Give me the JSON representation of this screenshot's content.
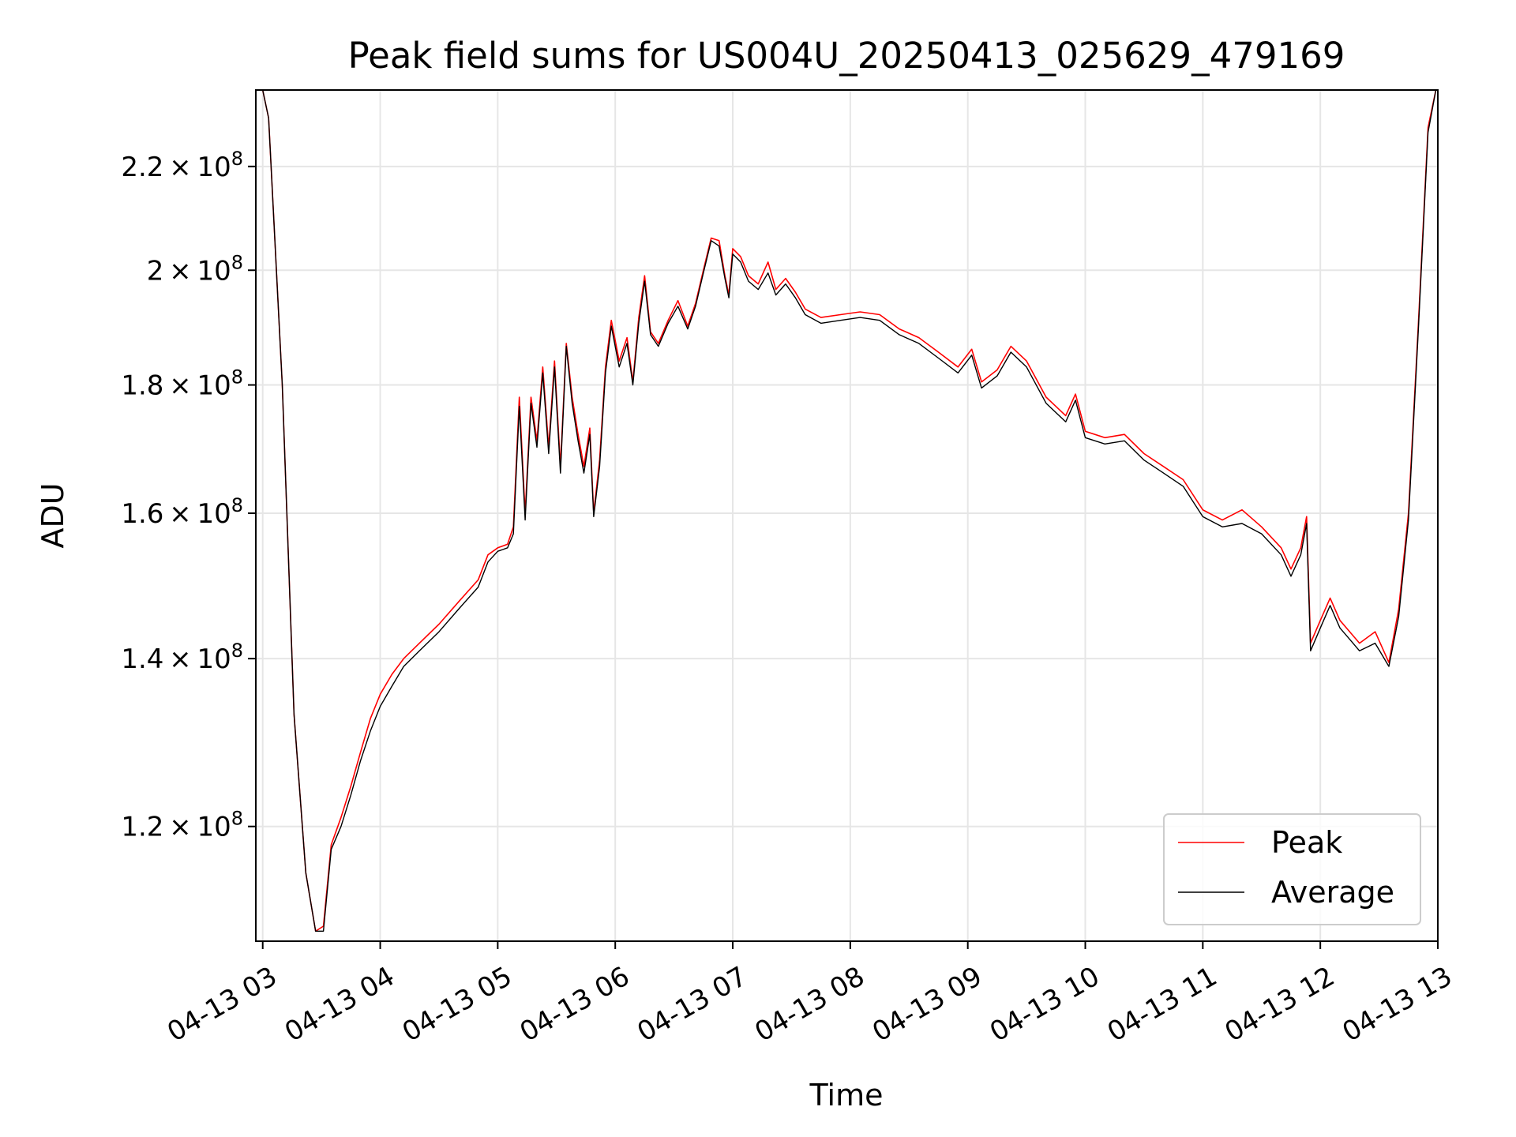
{
  "chart_data": {
    "type": "line",
    "title": "Peak field sums for US004U_20250413_025629_479169",
    "xlabel": "Time",
    "ylabel": "ADU",
    "yscale": "log",
    "grid": true,
    "legend_position": "bottom-right",
    "xlim": [
      "2025-04-13T02:56:29",
      "2025-04-13T13:00:00"
    ],
    "ylim": [
      108000000,
      236000000
    ],
    "x_ticks": [
      {
        "value": "2025-04-13T03:00",
        "label": "04-13 03"
      },
      {
        "value": "2025-04-13T04:00",
        "label": "04-13 04"
      },
      {
        "value": "2025-04-13T05:00",
        "label": "04-13 05"
      },
      {
        "value": "2025-04-13T06:00",
        "label": "04-13 06"
      },
      {
        "value": "2025-04-13T07:00",
        "label": "04-13 07"
      },
      {
        "value": "2025-04-13T08:00",
        "label": "04-13 08"
      },
      {
        "value": "2025-04-13T09:00",
        "label": "04-13 09"
      },
      {
        "value": "2025-04-13T10:00",
        "label": "04-13 10"
      },
      {
        "value": "2025-04-13T11:00",
        "label": "04-13 11"
      },
      {
        "value": "2025-04-13T12:00",
        "label": "04-13 12"
      },
      {
        "value": "2025-04-13T13:00",
        "label": "04-13 13"
      }
    ],
    "y_ticks": [
      {
        "value": 120000000,
        "mantissa": "1.2",
        "exponent": "8"
      },
      {
        "value": 140000000,
        "mantissa": "1.4",
        "exponent": "8"
      },
      {
        "value": 160000000,
        "mantissa": "1.6",
        "exponent": "8"
      },
      {
        "value": 180000000,
        "mantissa": "1.8",
        "exponent": "8"
      },
      {
        "value": 200000000,
        "mantissa": "2",
        "exponent": "8"
      },
      {
        "value": 220000000,
        "mantissa": "2.2",
        "exponent": "8"
      }
    ],
    "series": [
      {
        "name": "Peak",
        "color": "#ff0000",
        "points": [
          [
            "2025-04-13T02:56:29",
            236000000
          ],
          [
            "2025-04-13T03:00",
            236000000
          ],
          [
            "2025-04-13T03:03",
            230000000
          ],
          [
            "2025-04-13T03:10",
            180000000
          ],
          [
            "2025-04-13T03:16",
            133000000
          ],
          [
            "2025-04-13T03:22",
            115000000
          ],
          [
            "2025-04-13T03:27",
            109000000
          ],
          [
            "2025-04-13T03:31",
            109500000
          ],
          [
            "2025-04-13T03:35",
            118000000
          ],
          [
            "2025-04-13T03:40",
            121000000
          ],
          [
            "2025-04-13T03:45",
            124500000
          ],
          [
            "2025-04-13T03:50",
            128500000
          ],
          [
            "2025-04-13T03:55",
            132500000
          ],
          [
            "2025-04-13T04:00",
            135500000
          ],
          [
            "2025-04-13T04:06",
            138000000
          ],
          [
            "2025-04-13T04:12",
            140000000
          ],
          [
            "2025-04-13T04:20",
            142000000
          ],
          [
            "2025-04-13T04:30",
            144500000
          ],
          [
            "2025-04-13T04:40",
            147500000
          ],
          [
            "2025-04-13T04:50",
            150500000
          ],
          [
            "2025-04-13T04:55",
            154000000
          ],
          [
            "2025-04-13T05:00",
            155000000
          ],
          [
            "2025-04-13T05:05",
            155500000
          ],
          [
            "2025-04-13T05:08",
            158000000
          ],
          [
            "2025-04-13T05:11",
            178000000
          ],
          [
            "2025-04-13T05:14",
            160000000
          ],
          [
            "2025-04-13T05:17",
            178000000
          ],
          [
            "2025-04-13T05:20",
            171000000
          ],
          [
            "2025-04-13T05:23",
            183000000
          ],
          [
            "2025-04-13T05:26",
            170000000
          ],
          [
            "2025-04-13T05:29",
            184000000
          ],
          [
            "2025-04-13T05:32",
            167000000
          ],
          [
            "2025-04-13T05:35",
            187000000
          ],
          [
            "2025-04-13T05:38",
            178000000
          ],
          [
            "2025-04-13T05:41",
            172000000
          ],
          [
            "2025-04-13T05:44",
            167000000
          ],
          [
            "2025-04-13T05:47",
            173000000
          ],
          [
            "2025-04-13T05:49",
            160000000
          ],
          [
            "2025-04-13T05:52",
            168000000
          ],
          [
            "2025-04-13T05:55",
            183000000
          ],
          [
            "2025-04-13T05:58",
            191000000
          ],
          [
            "2025-04-13T06:02",
            184000000
          ],
          [
            "2025-04-13T06:06",
            188000000
          ],
          [
            "2025-04-13T06:09",
            180500000
          ],
          [
            "2025-04-13T06:12",
            191500000
          ],
          [
            "2025-04-13T06:15",
            199000000
          ],
          [
            "2025-04-13T06:18",
            189000000
          ],
          [
            "2025-04-13T06:22",
            187000000
          ],
          [
            "2025-04-13T06:27",
            191000000
          ],
          [
            "2025-04-13T06:32",
            194500000
          ],
          [
            "2025-04-13T06:37",
            190000000
          ],
          [
            "2025-04-13T06:41",
            194000000
          ],
          [
            "2025-04-13T06:45",
            200000000
          ],
          [
            "2025-04-13T06:49",
            206000000
          ],
          [
            "2025-04-13T06:53",
            205500000
          ],
          [
            "2025-04-13T06:56",
            199000000
          ],
          [
            "2025-04-13T06:58",
            195500000
          ],
          [
            "2025-04-13T07:00",
            204000000
          ],
          [
            "2025-04-13T07:04",
            202500000
          ],
          [
            "2025-04-13T07:08",
            199000000
          ],
          [
            "2025-04-13T07:13",
            197500000
          ],
          [
            "2025-04-13T07:18",
            201500000
          ],
          [
            "2025-04-13T07:22",
            196500000
          ],
          [
            "2025-04-13T07:27",
            198500000
          ],
          [
            "2025-04-13T07:32",
            196000000
          ],
          [
            "2025-04-13T07:37",
            193000000
          ],
          [
            "2025-04-13T07:45",
            191500000
          ],
          [
            "2025-04-13T07:55",
            192000000
          ],
          [
            "2025-04-13T08:05",
            192500000
          ],
          [
            "2025-04-13T08:15",
            192000000
          ],
          [
            "2025-04-13T08:25",
            189500000
          ],
          [
            "2025-04-13T08:35",
            188000000
          ],
          [
            "2025-04-13T08:45",
            185500000
          ],
          [
            "2025-04-13T08:55",
            183000000
          ],
          [
            "2025-04-13T09:02",
            186000000
          ],
          [
            "2025-04-13T09:07",
            180500000
          ],
          [
            "2025-04-13T09:15",
            182500000
          ],
          [
            "2025-04-13T09:22",
            186500000
          ],
          [
            "2025-04-13T09:30",
            184000000
          ],
          [
            "2025-04-13T09:40",
            178000000
          ],
          [
            "2025-04-13T09:50",
            175000000
          ],
          [
            "2025-04-13T09:55",
            178500000
          ],
          [
            "2025-04-13T10:00",
            172500000
          ],
          [
            "2025-04-13T10:10",
            171500000
          ],
          [
            "2025-04-13T10:20",
            172000000
          ],
          [
            "2025-04-13T10:30",
            169000000
          ],
          [
            "2025-04-13T10:40",
            167000000
          ],
          [
            "2025-04-13T10:50",
            165000000
          ],
          [
            "2025-04-13T11:00",
            160500000
          ],
          [
            "2025-04-13T11:10",
            159000000
          ],
          [
            "2025-04-13T11:20",
            160500000
          ],
          [
            "2025-04-13T11:30",
            158000000
          ],
          [
            "2025-04-13T11:40",
            155000000
          ],
          [
            "2025-04-13T11:45",
            152000000
          ],
          [
            "2025-04-13T11:50",
            155000000
          ],
          [
            "2025-04-13T11:53",
            159500000
          ],
          [
            "2025-04-13T11:55",
            142000000
          ],
          [
            "2025-04-13T12:00",
            145000000
          ],
          [
            "2025-04-13T12:05",
            148000000
          ],
          [
            "2025-04-13T12:10",
            145000000
          ],
          [
            "2025-04-13T12:15",
            143500000
          ],
          [
            "2025-04-13T12:20",
            142000000
          ],
          [
            "2025-04-13T12:28",
            143500000
          ],
          [
            "2025-04-13T12:35",
            139500000
          ],
          [
            "2025-04-13T12:40",
            146500000
          ],
          [
            "2025-04-13T12:45",
            160000000
          ],
          [
            "2025-04-13T12:50",
            190000000
          ],
          [
            "2025-04-13T12:55",
            228000000
          ],
          [
            "2025-04-13T12:59",
            236000000
          ]
        ]
      },
      {
        "name": "Average",
        "color": "#000000",
        "points": [
          [
            "2025-04-13T02:56:29",
            236000000
          ],
          [
            "2025-04-13T03:00",
            236000000
          ],
          [
            "2025-04-13T03:03",
            230000000
          ],
          [
            "2025-04-13T03:10",
            180000000
          ],
          [
            "2025-04-13T03:16",
            133000000
          ],
          [
            "2025-04-13T03:22",
            115000000
          ],
          [
            "2025-04-13T03:27",
            109000000
          ],
          [
            "2025-04-13T03:31",
            109000000
          ],
          [
            "2025-04-13T03:35",
            117500000
          ],
          [
            "2025-04-13T03:40",
            120000000
          ],
          [
            "2025-04-13T03:45",
            123500000
          ],
          [
            "2025-04-13T03:50",
            127500000
          ],
          [
            "2025-04-13T03:55",
            131000000
          ],
          [
            "2025-04-13T04:00",
            134000000
          ],
          [
            "2025-04-13T04:06",
            136500000
          ],
          [
            "2025-04-13T04:12",
            139000000
          ],
          [
            "2025-04-13T04:20",
            141000000
          ],
          [
            "2025-04-13T04:30",
            143500000
          ],
          [
            "2025-04-13T04:40",
            146500000
          ],
          [
            "2025-04-13T04:50",
            149500000
          ],
          [
            "2025-04-13T04:55",
            153000000
          ],
          [
            "2025-04-13T05:00",
            154500000
          ],
          [
            "2025-04-13T05:05",
            155000000
          ],
          [
            "2025-04-13T05:08",
            157000000
          ],
          [
            "2025-04-13T05:11",
            176500000
          ],
          [
            "2025-04-13T05:14",
            159000000
          ],
          [
            "2025-04-13T05:17",
            177000000
          ],
          [
            "2025-04-13T05:20",
            170000000
          ],
          [
            "2025-04-13T05:23",
            182000000
          ],
          [
            "2025-04-13T05:26",
            169000000
          ],
          [
            "2025-04-13T05:29",
            183000000
          ],
          [
            "2025-04-13T05:32",
            166000000
          ],
          [
            "2025-04-13T05:35",
            186500000
          ],
          [
            "2025-04-13T05:38",
            177000000
          ],
          [
            "2025-04-13T05:41",
            171000000
          ],
          [
            "2025-04-13T05:44",
            166000000
          ],
          [
            "2025-04-13T05:47",
            172000000
          ],
          [
            "2025-04-13T05:49",
            159500000
          ],
          [
            "2025-04-13T05:52",
            167000000
          ],
          [
            "2025-04-13T05:55",
            182000000
          ],
          [
            "2025-04-13T05:58",
            190000000
          ],
          [
            "2025-04-13T06:02",
            183000000
          ],
          [
            "2025-04-13T06:06",
            187000000
          ],
          [
            "2025-04-13T06:09",
            180000000
          ],
          [
            "2025-04-13T06:12",
            190500000
          ],
          [
            "2025-04-13T06:15",
            198000000
          ],
          [
            "2025-04-13T06:18",
            188500000
          ],
          [
            "2025-04-13T06:22",
            186500000
          ],
          [
            "2025-04-13T06:27",
            190500000
          ],
          [
            "2025-04-13T06:32",
            193500000
          ],
          [
            "2025-04-13T06:37",
            189500000
          ],
          [
            "2025-04-13T06:41",
            193500000
          ],
          [
            "2025-04-13T06:45",
            199500000
          ],
          [
            "2025-04-13T06:49",
            205500000
          ],
          [
            "2025-04-13T06:53",
            204500000
          ],
          [
            "2025-04-13T06:56",
            198500000
          ],
          [
            "2025-04-13T06:58",
            195000000
          ],
          [
            "2025-04-13T07:00",
            203000000
          ],
          [
            "2025-04-13T07:04",
            201500000
          ],
          [
            "2025-04-13T07:08",
            198000000
          ],
          [
            "2025-04-13T07:13",
            196500000
          ],
          [
            "2025-04-13T07:18",
            199500000
          ],
          [
            "2025-04-13T07:22",
            195500000
          ],
          [
            "2025-04-13T07:27",
            197500000
          ],
          [
            "2025-04-13T07:32",
            195000000
          ],
          [
            "2025-04-13T07:37",
            192000000
          ],
          [
            "2025-04-13T07:45",
            190500000
          ],
          [
            "2025-04-13T07:55",
            191000000
          ],
          [
            "2025-04-13T08:05",
            191500000
          ],
          [
            "2025-04-13T08:15",
            191000000
          ],
          [
            "2025-04-13T08:25",
            188500000
          ],
          [
            "2025-04-13T08:35",
            187000000
          ],
          [
            "2025-04-13T08:45",
            184500000
          ],
          [
            "2025-04-13T08:55",
            182000000
          ],
          [
            "2025-04-13T09:02",
            185000000
          ],
          [
            "2025-04-13T09:07",
            179500000
          ],
          [
            "2025-04-13T09:15",
            181500000
          ],
          [
            "2025-04-13T09:22",
            185500000
          ],
          [
            "2025-04-13T09:30",
            183000000
          ],
          [
            "2025-04-13T09:40",
            177000000
          ],
          [
            "2025-04-13T09:50",
            174000000
          ],
          [
            "2025-04-13T09:55",
            177500000
          ],
          [
            "2025-04-13T10:00",
            171500000
          ],
          [
            "2025-04-13T10:10",
            170500000
          ],
          [
            "2025-04-13T10:20",
            171000000
          ],
          [
            "2025-04-13T10:30",
            168000000
          ],
          [
            "2025-04-13T10:40",
            166000000
          ],
          [
            "2025-04-13T10:50",
            164000000
          ],
          [
            "2025-04-13T11:00",
            159500000
          ],
          [
            "2025-04-13T11:10",
            158000000
          ],
          [
            "2025-04-13T11:20",
            158500000
          ],
          [
            "2025-04-13T11:30",
            157000000
          ],
          [
            "2025-04-13T11:40",
            154000000
          ],
          [
            "2025-04-13T11:45",
            151000000
          ],
          [
            "2025-04-13T11:50",
            154000000
          ],
          [
            "2025-04-13T11:53",
            158500000
          ],
          [
            "2025-04-13T11:55",
            141000000
          ],
          [
            "2025-04-13T12:00",
            144000000
          ],
          [
            "2025-04-13T12:05",
            147000000
          ],
          [
            "2025-04-13T12:10",
            144000000
          ],
          [
            "2025-04-13T12:15",
            142500000
          ],
          [
            "2025-04-13T12:20",
            141000000
          ],
          [
            "2025-04-13T12:28",
            142000000
          ],
          [
            "2025-04-13T12:35",
            139000000
          ],
          [
            "2025-04-13T12:40",
            145500000
          ],
          [
            "2025-04-13T12:45",
            159000000
          ],
          [
            "2025-04-13T12:50",
            189000000
          ],
          [
            "2025-04-13T12:55",
            227000000
          ],
          [
            "2025-04-13T12:59",
            236000000
          ]
        ]
      }
    ],
    "legend": [
      {
        "label": "Peak",
        "color": "#ff0000"
      },
      {
        "label": "Average",
        "color": "#000000"
      }
    ]
  }
}
